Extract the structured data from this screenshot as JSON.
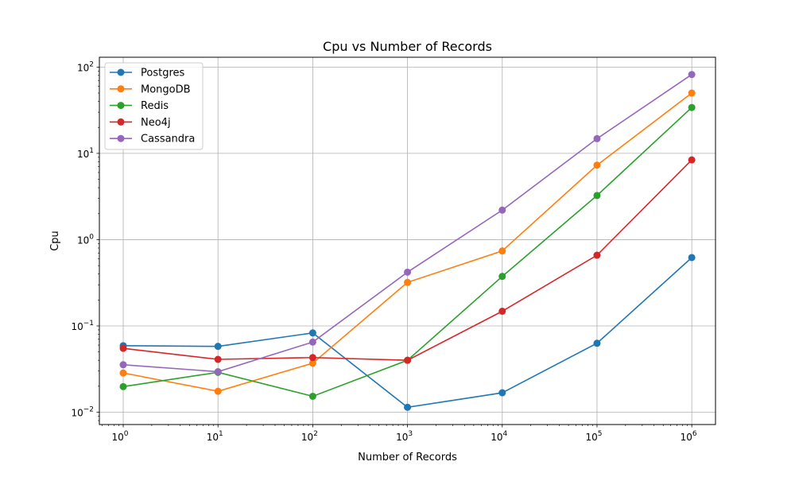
{
  "chart_data": {
    "type": "line",
    "title": "Cpu vs Number of Records",
    "xlabel": "Number of Records",
    "ylabel": "Cpu",
    "x_scale": "log",
    "y_scale": "log",
    "x": [
      1,
      10,
      100,
      1000,
      10000,
      100000,
      1000000
    ],
    "xlim": [
      0.56,
      1780000
    ],
    "ylim": [
      0.0072,
      130
    ],
    "x_ticks": [
      {
        "value": 1,
        "base": "10",
        "exp": "0"
      },
      {
        "value": 10,
        "base": "10",
        "exp": "1"
      },
      {
        "value": 100,
        "base": "10",
        "exp": "2"
      },
      {
        "value": 1000,
        "base": "10",
        "exp": "3"
      },
      {
        "value": 10000,
        "base": "10",
        "exp": "4"
      },
      {
        "value": 100000,
        "base": "10",
        "exp": "5"
      },
      {
        "value": 1000000,
        "base": "10",
        "exp": "6"
      }
    ],
    "y_ticks": [
      {
        "value": 0.01,
        "base": "10",
        "exp": "−2"
      },
      {
        "value": 0.1,
        "base": "10",
        "exp": "−1"
      },
      {
        "value": 1,
        "base": "10",
        "exp": "0"
      },
      {
        "value": 10,
        "base": "10",
        "exp": "1"
      },
      {
        "value": 100,
        "base": "10",
        "exp": "2"
      }
    ],
    "grid": true,
    "legend_position": "top-left",
    "series": [
      {
        "name": "Postgres",
        "color": "#1f77b4",
        "values": [
          0.059,
          0.058,
          0.083,
          0.0114,
          0.0168,
          0.063,
          0.62
        ]
      },
      {
        "name": "MongoDB",
        "color": "#ff7f0e",
        "values": [
          0.0285,
          0.0175,
          0.037,
          0.32,
          0.74,
          7.3,
          50
        ]
      },
      {
        "name": "Redis",
        "color": "#2ca02c",
        "values": [
          0.0198,
          0.029,
          0.0153,
          0.04,
          0.375,
          3.25,
          34
        ]
      },
      {
        "name": "Neo4j",
        "color": "#d62728",
        "values": [
          0.055,
          0.041,
          0.043,
          0.04,
          0.148,
          0.66,
          8.4
        ]
      },
      {
        "name": "Cassandra",
        "color": "#9467bd",
        "values": [
          0.0355,
          0.0295,
          0.065,
          0.42,
          2.2,
          14.8,
          82
        ]
      }
    ]
  }
}
